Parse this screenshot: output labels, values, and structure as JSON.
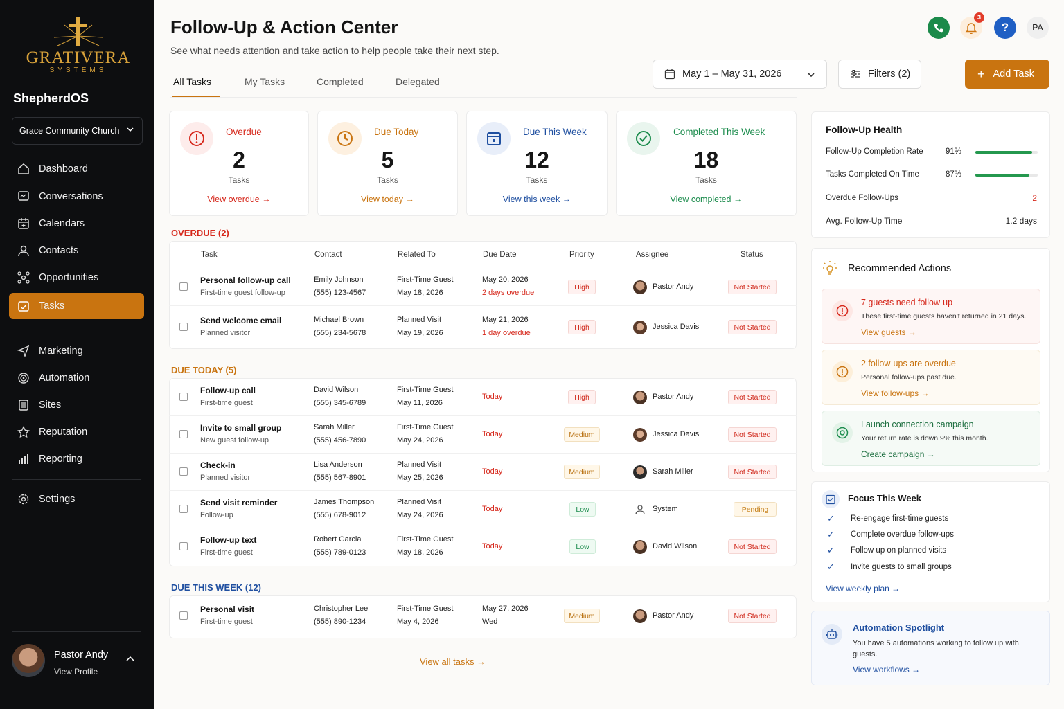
{
  "brand": {
    "logo_word": "GRATIVERA",
    "logo_sub": "SYSTEMS",
    "app_name": "ShepherdOS",
    "church": "Grace Community Church"
  },
  "nav": {
    "items": [
      {
        "label": "Dashboard",
        "icon": "home-icon"
      },
      {
        "label": "Conversations",
        "icon": "chat-icon"
      },
      {
        "label": "Calendars",
        "icon": "calendar-icon"
      },
      {
        "label": "Contacts",
        "icon": "user-icon"
      },
      {
        "label": "Opportunities",
        "icon": "network-icon"
      },
      {
        "label": "Tasks",
        "icon": "checkbox-icon",
        "active": true
      },
      {
        "label": "Marketing",
        "icon": "send-icon"
      },
      {
        "label": "Automation",
        "icon": "automation-icon"
      },
      {
        "label": "Sites",
        "icon": "sites-icon"
      },
      {
        "label": "Reputation",
        "icon": "star-icon"
      },
      {
        "label": "Reporting",
        "icon": "bar-chart-icon"
      },
      {
        "label": "Settings",
        "icon": "gear-icon"
      }
    ]
  },
  "profile": {
    "name": "Pastor Andy",
    "link": "View Profile"
  },
  "header": {
    "title": "Follow-Up & Action Center",
    "subtitle": "See what needs attention and take action to help people take their next step.",
    "tabs": [
      "All Tasks",
      "My Tasks",
      "Completed",
      "Delegated"
    ],
    "active_tab": "All Tasks",
    "notification_count": "3",
    "user_initials": "PA",
    "date_range": "May 1 – May 31, 2026",
    "filters_label": "Filters (2)",
    "add_task_label": "Add Task"
  },
  "stats": [
    {
      "label": "Overdue",
      "value": "2",
      "unit": "Tasks",
      "link": "View overdue",
      "color": "#d6281c"
    },
    {
      "label": "Due Today",
      "value": "5",
      "unit": "Tasks",
      "link": "View today",
      "color": "#c97410"
    },
    {
      "label": "Due This Week",
      "value": "12",
      "unit": "Tasks",
      "link": "View this week",
      "color": "#1f4fa0"
    },
    {
      "label": "Completed This Week",
      "value": "18",
      "unit": "Tasks",
      "link": "View completed",
      "color": "#1c8c4d"
    }
  ],
  "table": {
    "columns": [
      "Task",
      "Contact",
      "Related To",
      "Due Date",
      "Priority",
      "Assignee",
      "Status"
    ],
    "sections": [
      {
        "label": "OVERDUE (2)",
        "color": "#d6281c",
        "rows": [
          {
            "task": "Personal follow-up call",
            "task_sub": "First-time guest follow-up",
            "contact": "Emily Johnson",
            "phone": "(555) 123-4567",
            "related": "First-Time Guest",
            "related_date": "May 18, 2026",
            "due": "May 20, 2026",
            "due_sub": "2 days overdue",
            "priority": "High",
            "assignee": "Pastor Andy",
            "status": "Not Started"
          },
          {
            "task": "Send welcome email",
            "task_sub": "Planned visitor",
            "contact": "Michael Brown",
            "phone": "(555) 234-5678",
            "related": "Planned Visit",
            "related_date": "May 19, 2026",
            "due": "May 21, 2026",
            "due_sub": "1 day overdue",
            "priority": "High",
            "assignee": "Jessica Davis",
            "status": "Not Started"
          }
        ]
      },
      {
        "label": "DUE TODAY (5)",
        "color": "#c97410",
        "rows": [
          {
            "task": "Follow-up call",
            "task_sub": "First-time guest",
            "contact": "David Wilson",
            "phone": "(555) 345-6789",
            "related": "First-Time Guest",
            "related_date": "May 11, 2026",
            "due": "Today",
            "priority": "High",
            "assignee": "Pastor Andy",
            "status": "Not Started"
          },
          {
            "task": "Invite to small group",
            "task_sub": "New guest follow-up",
            "contact": "Sarah Miller",
            "phone": "(555) 456-7890",
            "related": "First-Time Guest",
            "related_date": "May 24, 2026",
            "due": "Today",
            "priority": "Medium",
            "assignee": "Jessica Davis",
            "status": "Not Started"
          },
          {
            "task": "Check-in",
            "task_sub": "Planned visitor",
            "contact": "Lisa Anderson",
            "phone": "(555) 567-8901",
            "related": "Planned Visit",
            "related_date": "May 25, 2026",
            "due": "Today",
            "priority": "Medium",
            "assignee": "Sarah Miller",
            "status": "Not Started"
          },
          {
            "task": "Send visit reminder",
            "task_sub": "Follow-up",
            "contact": "James Thompson",
            "phone": "(555) 678-9012",
            "related": "Planned Visit",
            "related_date": "May 24, 2026",
            "due": "Today",
            "priority": "Low",
            "assignee": "System",
            "status": "Pending"
          },
          {
            "task": "Follow-up text",
            "task_sub": "First-time guest",
            "contact": "Robert Garcia",
            "phone": "(555) 789-0123",
            "related": "First-Time Guest",
            "related_date": "May 18, 2026",
            "due": "Today",
            "priority": "Low",
            "assignee": "David Wilson",
            "status": "Not Started"
          }
        ]
      },
      {
        "label": "DUE THIS WEEK (12)",
        "color": "#1f4fa0",
        "rows": [
          {
            "task": "Personal visit",
            "task_sub": "First-time guest",
            "contact": "Christopher Lee",
            "phone": "(555) 890-1234",
            "related": "First-Time Guest",
            "related_date": "May 4, 2026",
            "due": "May 27, 2026",
            "due_sub": "Wed",
            "priority": "Medium",
            "assignee": "Pastor Andy",
            "status": "Not Started"
          }
        ]
      }
    ],
    "view_all": "View all tasks"
  },
  "health": {
    "title": "Follow-Up Health",
    "metrics": [
      {
        "label": "Follow-Up Completion Rate",
        "value": "91%",
        "fill": 0.91
      },
      {
        "label": "Tasks Completed On Time",
        "value": "87%",
        "fill": 0.87
      }
    ],
    "overdue_label": "Overdue Follow-Ups",
    "overdue_value": "2",
    "avg_label": "Avg. Follow-Up Time",
    "avg_value": "1.2 days"
  },
  "recommended": {
    "title": "Recommended Actions",
    "items": [
      {
        "title": "7 guests need follow-up",
        "desc": "These first-time guests haven't returned in 21 days.",
        "link": "View guests",
        "color": "#d6281c"
      },
      {
        "title": "2 follow-ups are overdue",
        "desc": "Personal follow-ups past due.",
        "link": "View follow-ups",
        "color": "#c97410"
      },
      {
        "title": "Launch connection campaign",
        "desc": "Your return rate is down 9% this month.",
        "link": "Create campaign",
        "color": "#1c8c4d"
      }
    ]
  },
  "focus": {
    "title": "Focus This Week",
    "items": [
      "Re-engage first-time guests",
      "Complete overdue follow-ups",
      "Follow up on planned visits",
      "Invite guests to small groups"
    ],
    "link": "View weekly plan"
  },
  "automation": {
    "title": "Automation Spotlight",
    "desc": "You have 5 automations working to follow up with guests.",
    "link": "View workflows"
  }
}
